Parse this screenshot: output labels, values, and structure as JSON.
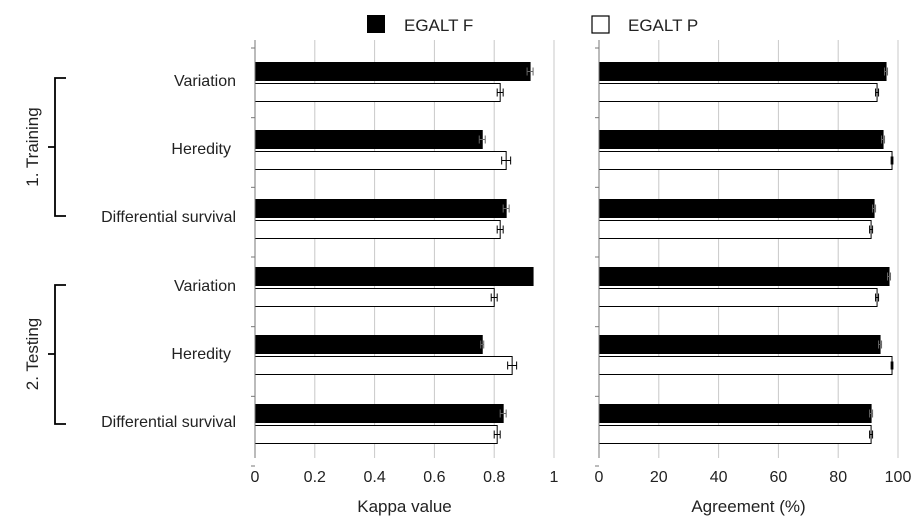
{
  "legend": [
    {
      "label": "EGALT F",
      "color": "#000000"
    },
    {
      "label": "EGALT P",
      "color": "#ffffff"
    }
  ],
  "groups": [
    {
      "label": "1. Training",
      "categories": [
        "Variation",
        "Heredity",
        "Differential survival"
      ]
    },
    {
      "label": "2. Testing",
      "categories": [
        "Variation",
        "Heredity",
        "Differential survival"
      ]
    }
  ],
  "chart_data": [
    {
      "type": "bar",
      "orientation": "horizontal",
      "categories": [
        "Variation",
        "Heredity",
        "Differential survival",
        "Variation",
        "Heredity",
        "Differential survival"
      ],
      "series": [
        {
          "name": "EGALT F",
          "values": [
            0.92,
            0.76,
            0.84,
            0.93,
            0.76,
            0.83
          ],
          "errors": [
            0.01,
            0.01,
            0.01,
            0.0,
            0.005,
            0.01
          ]
        },
        {
          "name": "EGALT P",
          "values": [
            0.82,
            0.84,
            0.82,
            0.8,
            0.86,
            0.81
          ],
          "errors": [
            0.01,
            0.015,
            0.01,
            0.01,
            0.015,
            0.01
          ]
        }
      ],
      "xlabel": "Kappa value",
      "xlim": [
        0,
        1
      ],
      "xticks": [
        "0",
        "0.2",
        "0.4",
        "0.6",
        "0.8",
        "1"
      ],
      "grid": true,
      "legend_position": "top"
    },
    {
      "type": "bar",
      "orientation": "horizontal",
      "categories": [
        "Variation",
        "Heredity",
        "Differential survival",
        "Variation",
        "Heredity",
        "Differential survival"
      ],
      "series": [
        {
          "name": "EGALT F",
          "values": [
            96,
            95,
            92,
            97,
            94,
            91
          ],
          "errors": [
            0.5,
            0.5,
            0.5,
            0.5,
            0.5,
            0.5
          ]
        },
        {
          "name": "EGALT P",
          "values": [
            93,
            98,
            91,
            93,
            98,
            91
          ],
          "errors": [
            0.5,
            0.3,
            0.5,
            0.5,
            0.3,
            0.5
          ]
        }
      ],
      "xlabel": "Agreement (%)",
      "xlim": [
        0,
        100
      ],
      "xticks": [
        "0",
        "20",
        "40",
        "60",
        "80",
        "100"
      ],
      "grid": true
    }
  ]
}
